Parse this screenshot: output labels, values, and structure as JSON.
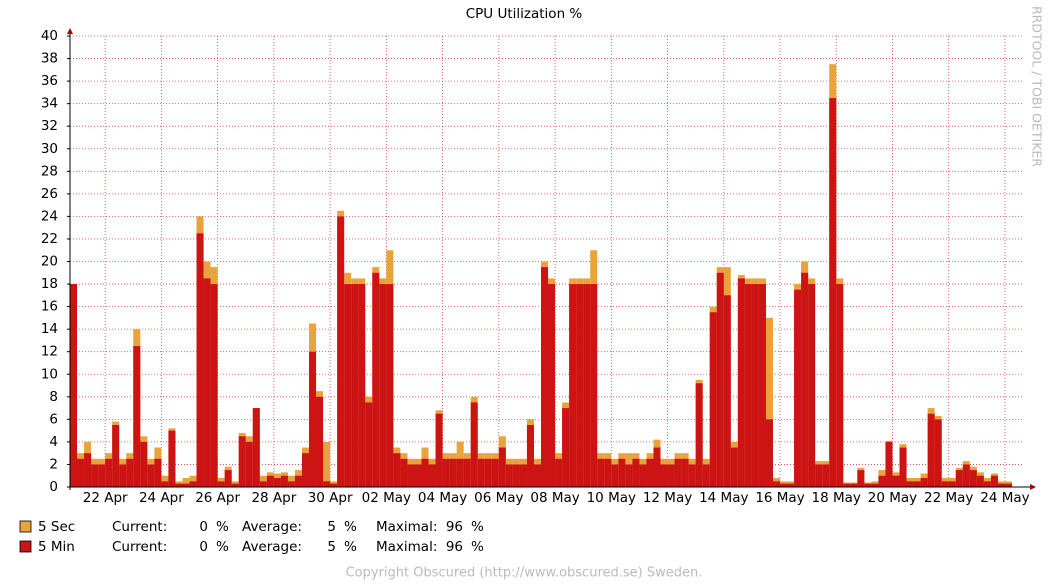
{
  "chart_data": {
    "type": "bar",
    "title": "CPU Utilization %",
    "side_label": "RRDTOOL / TOBI OETIKER",
    "footer": "Copyright Obscured (http://www.obscured.se) Sweden.",
    "categories": [
      null,
      null,
      null,
      null,
      null,
      "22 Apr",
      null,
      null,
      null,
      null,
      null,
      null,
      null,
      "24 Apr",
      null,
      null,
      null,
      null,
      null,
      null,
      null,
      "26 Apr",
      null,
      null,
      null,
      null,
      null,
      null,
      null,
      "28 Apr",
      null,
      null,
      null,
      null,
      null,
      null,
      null,
      "30 Apr",
      null,
      null,
      null,
      null,
      null,
      null,
      null,
      "02 May",
      null,
      null,
      null,
      null,
      null,
      null,
      null,
      "04 May",
      null,
      null,
      null,
      null,
      null,
      null,
      null,
      "06 May",
      null,
      null,
      null,
      null,
      null,
      null,
      null,
      "08 May",
      null,
      null,
      null,
      null,
      null,
      null,
      null,
      "10 May",
      null,
      null,
      null,
      null,
      null,
      null,
      null,
      "12 May",
      null,
      null,
      null,
      null,
      null,
      null,
      null,
      "14 May",
      null,
      null,
      null,
      null,
      null,
      null,
      null,
      "16 May",
      null,
      null,
      null,
      null,
      null,
      null,
      null,
      "18 May",
      null,
      null,
      null,
      null,
      null,
      null,
      null,
      "20 May",
      null,
      null,
      null,
      null,
      null,
      null,
      null,
      "22 May",
      null,
      null,
      null,
      null,
      null,
      null,
      null,
      "24 May"
    ],
    "series": [
      {
        "name": "5 Sec",
        "color": "#e8a33d",
        "current": 0,
        "average": 5,
        "maximal": 96,
        "values": [
          18,
          3,
          4,
          2.5,
          2.5,
          3,
          5.8,
          2.5,
          3,
          14,
          4.5,
          2.5,
          3.5,
          1,
          5.2,
          0.5,
          0.8,
          1,
          24,
          20,
          19.5,
          0.8,
          1.8,
          0.5,
          4.8,
          4.5,
          7,
          1,
          1.3,
          1.2,
          1.3,
          1,
          1.5,
          3.5,
          14.5,
          8.5,
          4,
          0.5,
          24.5,
          19,
          18.5,
          18.5,
          8,
          19.5,
          18.5,
          21,
          3.5,
          3,
          2.5,
          2.5,
          3.5,
          2.5,
          6.8,
          3,
          3,
          4,
          3,
          8,
          3,
          3,
          3,
          4.5,
          2.5,
          2.5,
          2.5,
          6,
          2.5,
          20,
          18.5,
          3,
          7.5,
          18.5,
          18.5,
          18.5,
          21,
          3,
          3,
          2.5,
          3,
          3,
          3,
          2.5,
          3,
          4.2,
          2.5,
          2.5,
          3,
          3,
          2.5,
          9.5,
          2.5,
          16,
          19.5,
          19.5,
          4,
          18.8,
          18.5,
          18.5,
          18.5,
          15,
          0.8,
          0.5,
          0.5,
          18,
          20,
          18.5,
          2.3,
          2.3,
          37.5,
          18.5,
          0.4,
          0.4,
          1.7,
          0.4,
          0.5,
          1.5,
          4.1,
          1.3,
          3.8,
          0.8,
          0.8,
          1.2,
          7,
          6.3,
          0.8,
          0.8,
          1.7,
          2.3,
          1.8,
          1.3,
          0.8,
          1.2,
          0.5,
          0.5
        ]
      },
      {
        "name": "5 Min",
        "color": "#cc1414",
        "current": 0,
        "average": 5,
        "maximal": 96,
        "values": [
          18,
          2.5,
          3,
          2,
          2,
          2.5,
          5.5,
          2,
          2.5,
          12.5,
          4,
          2,
          2.5,
          0.5,
          5,
          0.3,
          0.3,
          0.5,
          22.5,
          18.5,
          18,
          0.5,
          1.5,
          0.3,
          4.5,
          4,
          7,
          0.5,
          1,
          0.8,
          1,
          0.5,
          1,
          3,
          12,
          8,
          0.5,
          0.3,
          24,
          18,
          18,
          18,
          7.5,
          19,
          18,
          18,
          3,
          2.5,
          2,
          2,
          2.5,
          2,
          6.5,
          2.5,
          2.5,
          2.5,
          2.5,
          7.5,
          2.5,
          2.5,
          2.5,
          3.5,
          2,
          2,
          2,
          5.5,
          2,
          19.5,
          18,
          2.5,
          7,
          18,
          18,
          18,
          18,
          2.5,
          2.5,
          2,
          2.5,
          2,
          2.5,
          2,
          2.5,
          3.5,
          2,
          2,
          2.5,
          2.5,
          2,
          9.2,
          2,
          15.5,
          19,
          17,
          3.5,
          18.5,
          18,
          18,
          18,
          6,
          0.5,
          0.3,
          0.3,
          17.5,
          19,
          18,
          2,
          2,
          34.5,
          18,
          0.3,
          0.3,
          1.5,
          0.3,
          0.3,
          1,
          4,
          1,
          3.5,
          0.5,
          0.5,
          0.8,
          6.5,
          6,
          0.5,
          0.5,
          1.5,
          2,
          1.5,
          1,
          0.5,
          1,
          0.3,
          0.3
        ]
      }
    ],
    "legend_labels": {
      "current": "Current:",
      "average": "Average:",
      "maximal": "Maximal:"
    },
    "unit": "%",
    "ylim": [
      0,
      40
    ],
    "yticks": [
      0,
      2,
      4,
      6,
      8,
      10,
      12,
      14,
      16,
      18,
      20,
      22,
      24,
      26,
      28,
      30,
      32,
      34,
      36,
      38,
      40
    ],
    "grid": true
  }
}
